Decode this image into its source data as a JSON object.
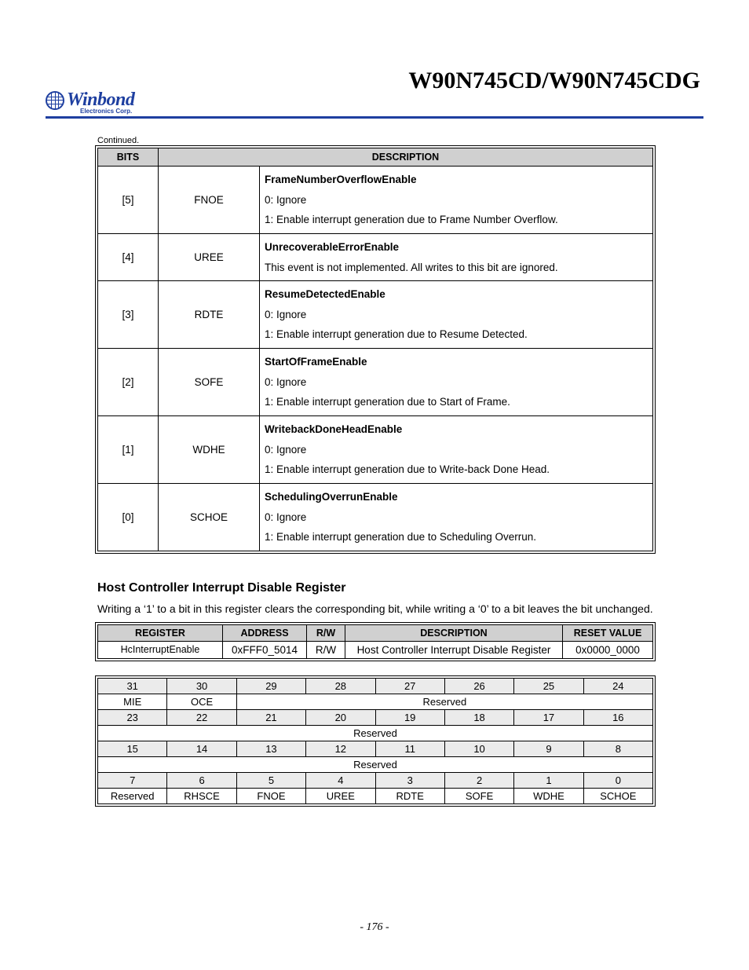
{
  "header": {
    "product_title": "W90N745CD/W90N745CDG",
    "logo_text": "Winbond",
    "logo_sub": "Electronics Corp.",
    "logo_color": "#1e3fa0"
  },
  "continued_label": "Continued.",
  "bits_table": {
    "headers": {
      "bits": "BITS",
      "description": "DESCRIPTION"
    },
    "rows": [
      {
        "bit": "[5]",
        "mnemonic": "FNOE",
        "title": "FrameNumberOverflowEnable",
        "line1": "0: Ignore",
        "line2": "1: Enable interrupt generation due to Frame Number Overflow."
      },
      {
        "bit": "[4]",
        "mnemonic": "UREE",
        "title": "UnrecoverableErrorEnable",
        "line1": "This event is not implemented.  All writes to this bit are ignored.",
        "line2": ""
      },
      {
        "bit": "[3]",
        "mnemonic": "RDTE",
        "title": "ResumeDetectedEnable",
        "line1": "0: Ignore",
        "line2": "1: Enable interrupt generation due to Resume Detected."
      },
      {
        "bit": "[2]",
        "mnemonic": "SOFE",
        "title": "StartOfFrameEnable",
        "line1": "0: Ignore",
        "line2": "1: Enable interrupt generation due to Start of Frame."
      },
      {
        "bit": "[1]",
        "mnemonic": "WDHE",
        "title": "WritebackDoneHeadEnable",
        "line1": "0: Ignore",
        "line2": "1: Enable interrupt generation due to Write-back Done Head."
      },
      {
        "bit": "[0]",
        "mnemonic": "SCHOE",
        "title": "SchedulingOverrunEnable",
        "line1": "0: Ignore",
        "line2": "1: Enable interrupt generation due to Scheduling Overrun."
      }
    ]
  },
  "section": {
    "heading": "Host Controller Interrupt Disable Register",
    "paragraph": "Writing a ‘1’ to a bit in this register clears the corresponding bit, while writing a ‘0’ to a bit leaves the bit unchanged."
  },
  "reg_summary": {
    "headers": {
      "register": "REGISTER",
      "address": "ADDRESS",
      "rw": "R/W",
      "description": "DESCRIPTION",
      "reset": "RESET VALUE"
    },
    "row": {
      "register": "HcInterruptEnable",
      "address": "0xFFF0_5014",
      "rw": "R/W",
      "description": "Host Controller Interrupt Disable Register",
      "reset": "0x0000_0000"
    }
  },
  "bitfield": {
    "nums": {
      "r1": [
        "31",
        "30",
        "29",
        "28",
        "27",
        "26",
        "25",
        "24"
      ],
      "r2": [
        "23",
        "22",
        "21",
        "20",
        "19",
        "18",
        "17",
        "16"
      ],
      "r3": [
        "15",
        "14",
        "13",
        "12",
        "11",
        "10",
        "9",
        "8"
      ],
      "r4": [
        "7",
        "6",
        "5",
        "4",
        "3",
        "2",
        "1",
        "0"
      ]
    },
    "labels": {
      "r1": {
        "a": "MIE",
        "b": "OCE",
        "c": "Reserved"
      },
      "r2": {
        "a": "Reserved"
      },
      "r3": {
        "a": "Reserved"
      },
      "r4": [
        "Reserved",
        "RHSCE",
        "FNOE",
        "UREE",
        "RDTE",
        "SOFE",
        "WDHE",
        "SCHOE"
      ]
    }
  },
  "page_number": "- 176 -",
  "style": {
    "shade_header": "#d0d0d0",
    "shade_num": "#ebebeb",
    "body_font_size_pt": 10,
    "title_font_size_pt": 22
  }
}
